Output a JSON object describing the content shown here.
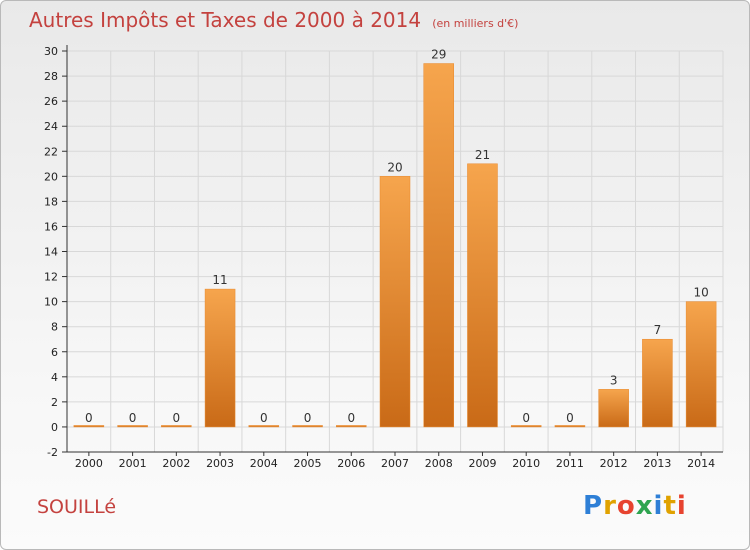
{
  "header": {
    "title": "Autres Impôts et Taxes de 2000 à 2014",
    "subtitle": "(en milliers d'€)"
  },
  "footer": {
    "commune": "SOUILLé",
    "logo_letters": [
      "P",
      "r",
      "o",
      "x",
      "i",
      "t",
      "i"
    ],
    "logo_colors": [
      "#2e7fd6",
      "#e0a200",
      "#e7432f",
      "#2ea44f",
      "#2e7fd6",
      "#e0a200",
      "#e7432f"
    ]
  },
  "colors": {
    "title": "#c4423f",
    "bar_light": "#f6a54d",
    "bar_dark": "#c96a17",
    "grid": "#d8d8d8"
  },
  "chart_data": {
    "type": "bar",
    "categories": [
      "2000",
      "2001",
      "2002",
      "2003",
      "2004",
      "2005",
      "2006",
      "2007",
      "2008",
      "2009",
      "2010",
      "2011",
      "2012",
      "2013",
      "2014"
    ],
    "values": [
      0,
      0,
      0,
      11,
      0,
      0,
      0,
      20,
      29,
      21,
      0,
      0,
      3,
      7,
      10
    ],
    "ylim": [
      -2,
      30
    ],
    "yticks": [
      -2,
      0,
      2,
      4,
      6,
      8,
      10,
      12,
      14,
      16,
      18,
      20,
      22,
      24,
      26,
      28,
      30
    ],
    "title": "Autres Impôts et Taxes de 2000 à 2014",
    "xlabel": "",
    "ylabel": "",
    "grid": true
  }
}
